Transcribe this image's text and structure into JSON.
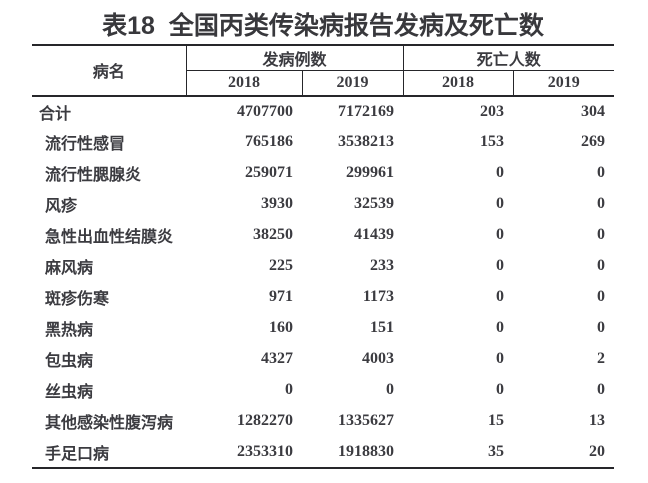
{
  "title": "表18  全国丙类传染病报告发病及死亡数",
  "table": {
    "col_disease": "病名",
    "group_cases": "发病例数",
    "group_deaths": "死亡人数",
    "year_headers": [
      "2018",
      "2019",
      "2018",
      "2019"
    ],
    "rows": [
      {
        "name": "合计",
        "indent": false,
        "values": [
          "4707700",
          "7172169",
          "203",
          "304"
        ]
      },
      {
        "name": "流行性感冒",
        "indent": true,
        "values": [
          "765186",
          "3538213",
          "153",
          "269"
        ]
      },
      {
        "name": "流行性腮腺炎",
        "indent": true,
        "values": [
          "259071",
          "299961",
          "0",
          "0"
        ]
      },
      {
        "name": "风疹",
        "indent": true,
        "values": [
          "3930",
          "32539",
          "0",
          "0"
        ]
      },
      {
        "name": "急性出血性结膜炎",
        "indent": true,
        "values": [
          "38250",
          "41439",
          "0",
          "0"
        ]
      },
      {
        "name": "麻风病",
        "indent": true,
        "values": [
          "225",
          "233",
          "0",
          "0"
        ]
      },
      {
        "name": "斑疹伤寒",
        "indent": true,
        "values": [
          "971",
          "1173",
          "0",
          "0"
        ]
      },
      {
        "name": "黑热病",
        "indent": true,
        "values": [
          "160",
          "151",
          "0",
          "0"
        ]
      },
      {
        "name": "包虫病",
        "indent": true,
        "values": [
          "4327",
          "4003",
          "0",
          "2"
        ]
      },
      {
        "name": "丝虫病",
        "indent": true,
        "values": [
          "0",
          "0",
          "0",
          "0"
        ]
      },
      {
        "name": "其他感染性腹泻病",
        "indent": true,
        "values": [
          "1282270",
          "1335627",
          "15",
          "13"
        ]
      },
      {
        "name": "手足口病",
        "indent": true,
        "values": [
          "2353310",
          "1918830",
          "35",
          "20"
        ]
      }
    ]
  },
  "colors": {
    "text": "#3b3b40",
    "rule": "#26262a",
    "background": "#ffffff"
  }
}
